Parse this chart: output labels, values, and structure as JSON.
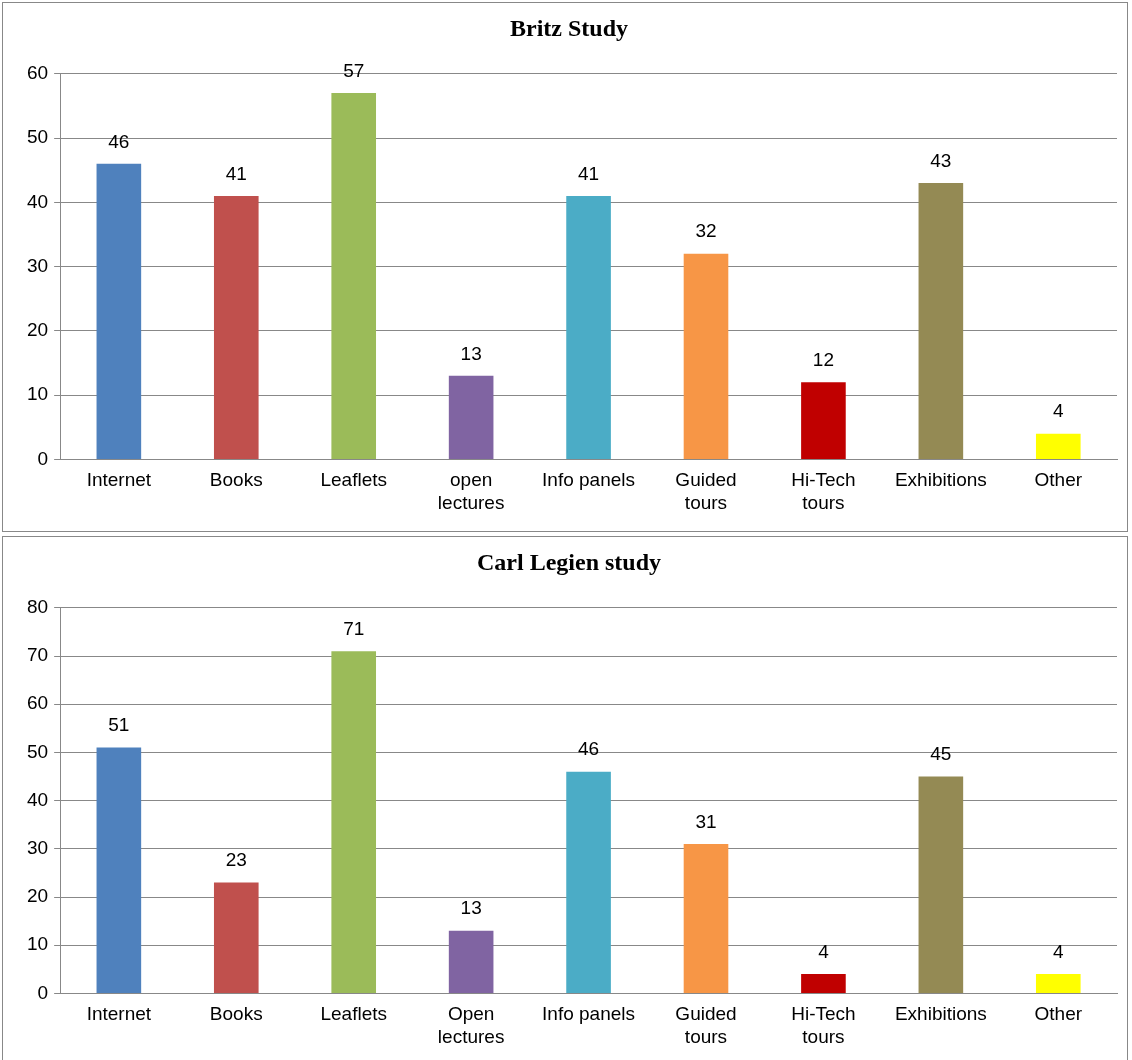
{
  "chart_data": [
    {
      "type": "bar",
      "title": "Britz Study",
      "categories": [
        "Internet",
        "Books",
        "Leaflets",
        "open lectures",
        "Info panels",
        "Guided tours",
        "Hi-Tech tours",
        "Exhibitions",
        "Other"
      ],
      "values": [
        46,
        41,
        57,
        13,
        41,
        32,
        12,
        43,
        4
      ],
      "colors": [
        "#4f81bd",
        "#c0504d",
        "#9bbb59",
        "#8064a2",
        "#4bacc6",
        "#f79646",
        "#c00000",
        "#948a54",
        "#ffff00"
      ],
      "ylim": [
        0,
        60
      ],
      "yticks": [
        0,
        10,
        20,
        30,
        40,
        50,
        60
      ],
      "grid": "y",
      "legend": false,
      "data_labels": true
    },
    {
      "type": "bar",
      "title": "Carl Legien study",
      "categories": [
        "Internet",
        "Books",
        "Leaflets",
        "Open lectures",
        "Info panels",
        "Guided tours",
        "Hi-Tech tours",
        "Exhibitions",
        "Other"
      ],
      "values": [
        51,
        23,
        71,
        13,
        46,
        31,
        4,
        45,
        4
      ],
      "colors": [
        "#4f81bd",
        "#c0504d",
        "#9bbb59",
        "#8064a2",
        "#4bacc6",
        "#f79646",
        "#c00000",
        "#948a54",
        "#ffff00"
      ],
      "ylim": [
        0,
        80
      ],
      "yticks": [
        0,
        10,
        20,
        30,
        40,
        50,
        60,
        70,
        80
      ],
      "grid": "y",
      "legend": false,
      "data_labels": true
    }
  ]
}
